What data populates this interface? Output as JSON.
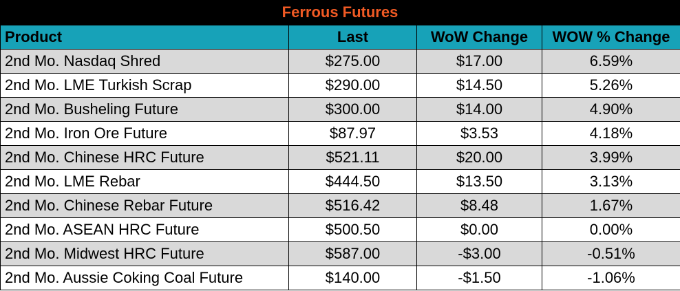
{
  "title": "Ferrous Futures",
  "headers": [
    "Product",
    "Last",
    "WoW Change",
    "WOW % Change"
  ],
  "rows": [
    [
      "2nd Mo. Nasdaq Shred",
      "$275.00",
      "$17.00",
      "6.59%"
    ],
    [
      "2nd Mo. LME Turkish Scrap",
      "$290.00",
      "$14.50",
      "5.26%"
    ],
    [
      "2nd Mo. Busheling Future",
      "$300.00",
      "$14.00",
      "4.90%"
    ],
    [
      "2nd Mo. Iron Ore Future",
      "$87.97",
      "$3.53",
      "4.18%"
    ],
    [
      "2nd Mo. Chinese HRC Future",
      "$521.11",
      "$20.00",
      "3.99%"
    ],
    [
      "2nd Mo. LME Rebar",
      "$444.50",
      "$13.50",
      "3.13%"
    ],
    [
      "2nd Mo. Chinese Rebar Future",
      "$516.42",
      "$8.48",
      "1.67%"
    ],
    [
      "2nd Mo. ASEAN HRC Future",
      "$500.50",
      "$0.00",
      "0.00%"
    ],
    [
      "2nd Mo. Midwest HRC Future",
      "$587.00",
      "-$3.00",
      "-0.51%"
    ],
    [
      "2nd Mo. Aussie Coking Coal Future",
      "$140.00",
      "-$1.50",
      "-1.06%"
    ]
  ],
  "colors": {
    "title_background": "#000000",
    "title_text": "#f05a24",
    "header_background": "#17a2b8",
    "shaded_row": "#d9d9d9",
    "plain_row": "#ffffff"
  }
}
